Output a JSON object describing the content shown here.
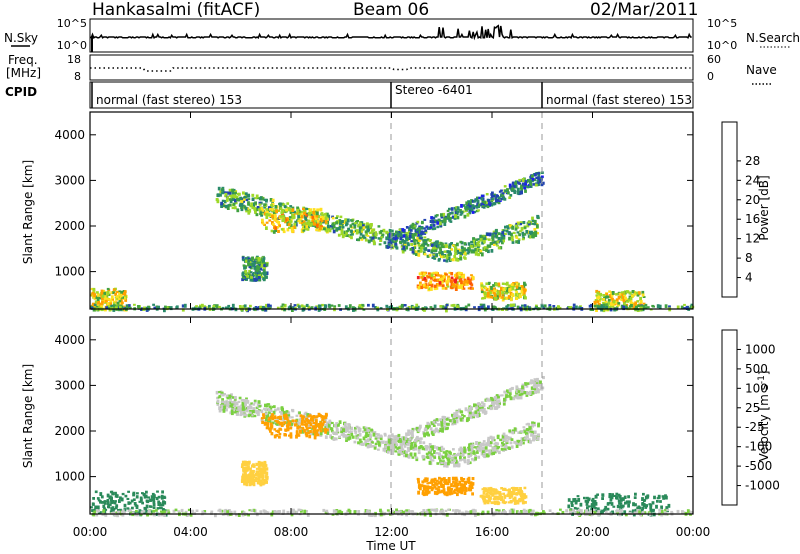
{
  "header": {
    "station": "Hankasalmi (fitACF)",
    "beam": "Beam 06",
    "date": "02/Mar/2011"
  },
  "strips": {
    "nsky_label": "N.Sky",
    "nsky_ticks": [
      "10^5",
      "10^0"
    ],
    "nsearch_label": "N.Search",
    "nsearch_ticks": [
      "10^5",
      "10^0"
    ],
    "freq_label": "Freq.",
    "freq_unit": "[MHz]",
    "freq_ticks": [
      "18",
      "8"
    ],
    "nave_label": "Nave",
    "nave_ticks": [
      "60",
      "0"
    ],
    "cpid_label": "CPID",
    "cpid_segments": [
      {
        "label": "normal (fast stereo) 153",
        "start_h": 0,
        "end_h": 12
      },
      {
        "label": "Stereo -6401",
        "start_h": 12,
        "end_h": 18
      },
      {
        "label": "normal (fast stereo) 153",
        "start_h": 18,
        "end_h": 24
      }
    ]
  },
  "axes": {
    "ylabel": "Slant Range [km]",
    "yticks": [
      "1000",
      "2000",
      "3000",
      "4000"
    ],
    "xlabel": "Time UT",
    "xticks": [
      "00:00",
      "04:00",
      "08:00",
      "12:00",
      "16:00",
      "20:00",
      "00:00"
    ]
  },
  "colorbars": {
    "power": {
      "label": "Power [dB]",
      "ticks": [
        "4",
        "8",
        "12",
        "16",
        "20",
        "24",
        "28"
      ],
      "colors": [
        "#1c1cf0",
        "#2244b0",
        "#2a8a6a",
        "#40a040",
        "#9ed828",
        "#ffe020",
        "#ffa000",
        "#ff6a00",
        "#f02020"
      ]
    },
    "velocity": {
      "label": "Velocity [m s",
      "label_sup": "-1",
      "label_end": "]",
      "ticks": [
        "1000",
        "500",
        "100",
        "25",
        "-25",
        "-100",
        "-500",
        "-1000"
      ],
      "colors": [
        "#1c2ce0",
        "#2a5cc0",
        "#2a8a5a",
        "#7ad040",
        "#c8c8c8",
        "#ffd040",
        "#ffa000",
        "#ff5a00",
        "#f01818"
      ]
    }
  },
  "chart_data": [
    {
      "type": "heatmap",
      "title": "Power",
      "xlabel": "Time UT",
      "ylabel": "Slant Range [km]",
      "xlim": [
        0,
        24
      ],
      "ylim": [
        180,
        4500
      ],
      "colorbar_label": "Power [dB]",
      "regions": [
        {
          "name": "main arc",
          "t_start": 5.0,
          "t_end": 17.8,
          "range_start": 2700,
          "range_end": 1400,
          "range_mid": 1450,
          "thickness": 420,
          "value": 14
        },
        {
          "name": "upper arc",
          "t_start": 11.8,
          "t_end": 18.0,
          "range_start": 1700,
          "range_end": 3100,
          "thickness": 260,
          "value": 10
        },
        {
          "name": "patch 07-09",
          "t_start": 6.8,
          "t_end": 9.4,
          "range_start": 1900,
          "range_end": 2400,
          "value": 22
        },
        {
          "name": "near range 00-01",
          "t_start": 0.0,
          "t_end": 1.4,
          "range_start": 200,
          "range_end": 650,
          "value": 20
        },
        {
          "name": "patch 13-15",
          "t_start": 13.0,
          "t_end": 15.2,
          "range_start": 650,
          "range_end": 1000,
          "value": 26
        },
        {
          "name": "patch 16-17",
          "t_start": 15.5,
          "t_end": 17.3,
          "range_start": 430,
          "range_end": 780,
          "value": 20
        },
        {
          "name": "patch 06-07",
          "t_start": 6.0,
          "t_end": 7.0,
          "range_start": 850,
          "range_end": 1350,
          "value": 12
        },
        {
          "name": "near range 20-22",
          "t_start": 20.0,
          "t_end": 22.0,
          "range_start": 200,
          "range_end": 600,
          "value": 20
        },
        {
          "name": "ground band",
          "t_start": 0.0,
          "t_end": 24.0,
          "range_start": 190,
          "range_end": 300,
          "value": 12
        }
      ]
    },
    {
      "type": "heatmap",
      "title": "Velocity",
      "xlabel": "Time UT",
      "ylabel": "Slant Range [km]",
      "xlim": [
        0,
        24
      ],
      "ylim": [
        180,
        4500
      ],
      "colorbar_label": "Velocity [m s-1]",
      "regions": [
        {
          "name": "main arc",
          "t_start": 5.0,
          "t_end": 17.8,
          "range_start": 2700,
          "range_end": 1400,
          "value": 0
        },
        {
          "name": "upper arc",
          "t_start": 11.8,
          "t_end": 18.0,
          "range_start": 1700,
          "range_end": 3100,
          "value": 0
        },
        {
          "name": "patch 07-09",
          "t_start": 6.8,
          "t_end": 9.4,
          "range_start": 1900,
          "range_end": 2400,
          "value": -250
        },
        {
          "name": "patch 06-07",
          "t_start": 6.0,
          "t_end": 7.0,
          "range_start": 850,
          "range_end": 1350,
          "value": -60
        },
        {
          "name": "patch 13-15",
          "t_start": 13.0,
          "t_end": 15.2,
          "range_start": 650,
          "range_end": 1000,
          "value": -250
        },
        {
          "name": "patch 16-17",
          "t_start": 15.5,
          "t_end": 17.3,
          "range_start": 430,
          "range_end": 780,
          "value": -60
        },
        {
          "name": "near range 00-03",
          "t_start": 0.0,
          "t_end": 3.0,
          "range_start": 200,
          "range_end": 700,
          "value": 60
        },
        {
          "name": "near range 19-23",
          "t_start": 19.0,
          "t_end": 23.0,
          "range_start": 200,
          "range_end": 650,
          "value": 60
        },
        {
          "name": "ground band",
          "t_start": 0.0,
          "t_end": 24.0,
          "range_start": 190,
          "range_end": 300,
          "value": 0
        }
      ]
    }
  ]
}
